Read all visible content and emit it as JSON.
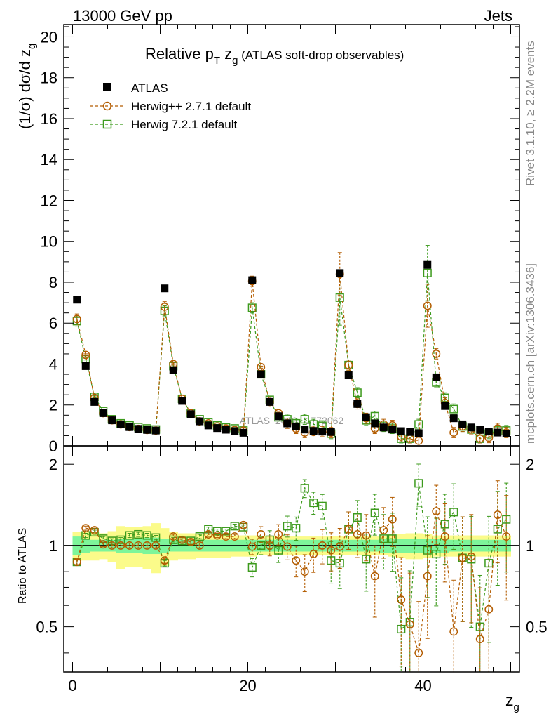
{
  "header": {
    "left": "13000 GeV pp",
    "right": "Jets"
  },
  "side_labels": {
    "rivet": "Rivet 3.1.10, ≥ 2.2M events",
    "mcplots": "mcplots.cern.ch [arXiv:1306.3436]"
  },
  "watermark": "ATLAS_2019_I1772062",
  "colors": {
    "atlas": "#000000",
    "herwigpp": "#b35c00",
    "herwig7": "#3c9a1c",
    "band_inner": "#7df59a",
    "band_outer": "#fbfb8a"
  },
  "chart_data": [
    {
      "type": "scatter",
      "title": "Relative p_T z_g (ATLAS soft-drop observables)",
      "title_parts": {
        "main": "Relative p",
        "sub1": "T",
        "mid": " z",
        "sub2": "g",
        "tail": " (ATLAS soft-drop observables)"
      },
      "ylabel": "(1/σ) dσ/d z_g",
      "ylabel_parts": {
        "main": "(1/σ) dσ/d z",
        "sub": "g"
      },
      "xlabel": "",
      "xlim": [
        -1,
        51
      ],
      "ylim": [
        0,
        20.6
      ],
      "y_ticks": [
        0,
        2,
        4,
        6,
        8,
        10,
        12,
        14,
        16,
        18,
        20
      ],
      "x": [
        0.5,
        1.5,
        2.5,
        3.5,
        4.5,
        5.5,
        6.5,
        7.5,
        8.5,
        9.5,
        10.5,
        11.5,
        12.5,
        13.5,
        14.5,
        15.5,
        16.5,
        17.5,
        18.5,
        19.5,
        20.5,
        21.5,
        22.5,
        23.5,
        24.5,
        25.5,
        26.5,
        27.5,
        28.5,
        29.5,
        30.5,
        31.5,
        32.5,
        33.5,
        34.5,
        35.5,
        36.5,
        37.5,
        38.5,
        39.5,
        40.5,
        41.5,
        42.5,
        43.5,
        44.5,
        45.5,
        46.5,
        47.5,
        48.5,
        49.5
      ],
      "legend": [
        "ATLAS",
        "Herwig++ 2.7.1 default",
        "Herwig 7.2.1 default"
      ],
      "series": [
        {
          "name": "ATLAS",
          "values": [
            7.15,
            3.9,
            2.15,
            1.6,
            1.25,
            1.05,
            0.92,
            0.83,
            0.78,
            0.75,
            7.7,
            3.7,
            2.2,
            1.55,
            1.2,
            1.0,
            0.87,
            0.79,
            0.72,
            0.64,
            8.1,
            3.5,
            2.15,
            1.45,
            1.1,
            0.95,
            0.8,
            0.73,
            0.7,
            0.68,
            8.45,
            3.45,
            2.05,
            1.4,
            1.1,
            0.9,
            0.8,
            0.72,
            0.68,
            0.62,
            8.85,
            3.35,
            1.95,
            1.35,
            1.05,
            0.9,
            0.78,
            0.7,
            0.65,
            0.6
          ]
        },
        {
          "name": "Herwig++ 2.7.1 default",
          "values": [
            6.2,
            4.45,
            2.35,
            1.6,
            1.25,
            1.05,
            0.92,
            0.83,
            0.78,
            0.75,
            6.8,
            4.0,
            2.3,
            1.6,
            1.2,
            1.1,
            0.95,
            0.85,
            0.78,
            0.75,
            8.05,
            3.85,
            2.15,
            1.6,
            1.1,
            0.85,
            0.65,
            0.68,
            0.7,
            0.65,
            8.4,
            3.95,
            2.05,
            1.35,
            0.85,
            1.05,
            1.0,
            0.45,
            0.35,
            0.25,
            6.85,
            4.5,
            2.1,
            0.65,
            0.95,
            0.8,
            0.35,
            0.4,
            0.85,
            0.65
          ]
        },
        {
          "name": "Herwig 7.2.1 default",
          "values": [
            6.1,
            4.25,
            2.4,
            1.7,
            1.3,
            1.1,
            1.0,
            0.92,
            0.85,
            0.8,
            6.6,
            3.9,
            2.3,
            1.6,
            1.3,
            1.15,
            1.0,
            0.9,
            0.85,
            0.75,
            6.75,
            3.5,
            2.25,
            1.4,
            1.3,
            1.1,
            1.3,
            1.05,
            0.98,
            0.6,
            7.25,
            3.95,
            2.6,
            1.25,
            1.45,
            0.95,
            0.85,
            0.35,
            0.35,
            1.05,
            8.45,
            3.1,
            2.35,
            1.8,
            0.95,
            0.8,
            0.35,
            0.6,
            0.75,
            0.75
          ]
        }
      ]
    },
    {
      "type": "scatter",
      "title": "",
      "ylabel": "Ratio to ATLAS",
      "xlabel": "z_g",
      "xlabel_parts": {
        "main": "z",
        "sub": "g"
      },
      "xlim": [
        -1,
        51
      ],
      "ylim": [
        0.34,
        2.34
      ],
      "x_ticks": [
        0,
        20,
        40
      ],
      "y_tick_labels": [
        "0.5",
        "1",
        "2"
      ],
      "y_tick_values": [
        0.5,
        1,
        2
      ],
      "x": [
        0.5,
        1.5,
        2.5,
        3.5,
        4.5,
        5.5,
        6.5,
        7.5,
        8.5,
        9.5,
        10.5,
        11.5,
        12.5,
        13.5,
        14.5,
        15.5,
        16.5,
        17.5,
        18.5,
        19.5,
        20.5,
        21.5,
        22.5,
        23.5,
        24.5,
        25.5,
        26.5,
        27.5,
        28.5,
        29.5,
        30.5,
        31.5,
        32.5,
        33.5,
        34.5,
        35.5,
        36.5,
        37.5,
        38.5,
        39.5,
        40.5,
        41.5,
        42.5,
        43.5,
        44.5,
        45.5,
        46.5,
        47.5,
        48.5,
        49.5
      ],
      "series": [
        {
          "name": "Herwig++ 2.7.1 default",
          "values": [
            0.87,
            1.16,
            1.14,
            1.01,
            1.0,
            1.0,
            1.0,
            1.0,
            1.0,
            1.0,
            0.88,
            1.08,
            1.05,
            1.03,
            1.0,
            1.1,
            1.09,
            1.08,
            1.08,
            1.19,
            0.99,
            1.1,
            1.0,
            1.1,
            0.99,
            0.88,
            0.8,
            0.93,
            1.0,
            0.96,
            0.99,
            1.15,
            1.1,
            1.09,
            0.77,
            1.14,
            1.25,
            0.63,
            0.51,
            0.4,
            0.77,
            1.34,
            1.08,
            0.48,
            0.9,
            0.91,
            0.45,
            0.58,
            1.3,
            1.08
          ]
        },
        {
          "name": "Herwig 7.2.1 default",
          "values": [
            0.87,
            1.09,
            1.12,
            1.06,
            1.04,
            1.05,
            1.09,
            1.1,
            1.09,
            1.07,
            0.86,
            1.05,
            1.04,
            1.04,
            1.08,
            1.15,
            1.13,
            1.13,
            1.18,
            1.17,
            0.83,
            1.0,
            1.05,
            0.96,
            1.18,
            1.16,
            1.63,
            1.44,
            1.4,
            0.88,
            0.86,
            1.15,
            1.27,
            0.89,
            1.32,
            1.06,
            1.06,
            0.49,
            0.52,
            1.7,
            0.96,
            0.93,
            1.2,
            1.33,
            0.9,
            0.89,
            0.5,
            0.86,
            1.15,
            1.25
          ]
        }
      ],
      "bands": {
        "inner": [
          0.08,
          0.06,
          0.05,
          0.05,
          0.05,
          0.06,
          0.06,
          0.06,
          0.07,
          0.07,
          0.06,
          0.05,
          0.05,
          0.05,
          0.05,
          0.05,
          0.05,
          0.05,
          0.05,
          0.05,
          0.05,
          0.05,
          0.05,
          0.05,
          0.05,
          0.05,
          0.05,
          0.05,
          0.05,
          0.05,
          0.05,
          0.05,
          0.05,
          0.05,
          0.05,
          0.06,
          0.06,
          0.06,
          0.06,
          0.06,
          0.06,
          0.06,
          0.06,
          0.05,
          0.05,
          0.05,
          0.05,
          0.05,
          0.05,
          0.05
        ],
        "outer": [
          0.12,
          0.12,
          0.12,
          0.11,
          0.13,
          0.18,
          0.17,
          0.17,
          0.18,
          0.21,
          0.16,
          0.12,
          0.11,
          0.11,
          0.1,
          0.1,
          0.1,
          0.1,
          0.09,
          0.09,
          0.09,
          0.08,
          0.08,
          0.08,
          0.08,
          0.08,
          0.08,
          0.08,
          0.08,
          0.08,
          0.08,
          0.08,
          0.08,
          0.08,
          0.08,
          0.08,
          0.09,
          0.1,
          0.11,
          0.11,
          0.1,
          0.09,
          0.09,
          0.09,
          0.09,
          0.09,
          0.09,
          0.09,
          0.09,
          0.09
        ]
      }
    }
  ]
}
